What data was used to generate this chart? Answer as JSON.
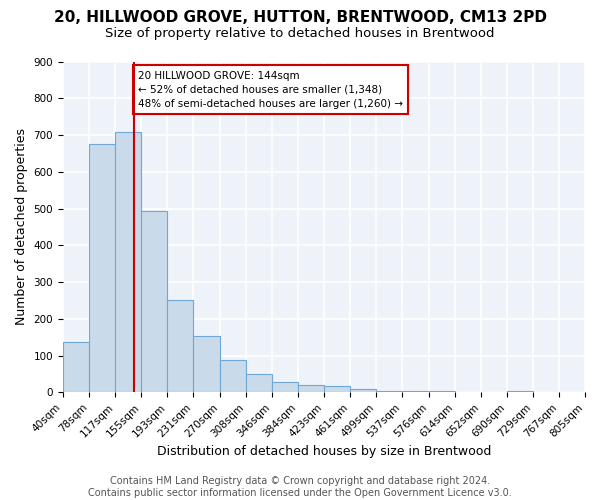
{
  "title": "20, HILLWOOD GROVE, HUTTON, BRENTWOOD, CM13 2PD",
  "subtitle": "Size of property relative to detached houses in Brentwood",
  "xlabel": "Distribution of detached houses by size in Brentwood",
  "ylabel": "Number of detached properties",
  "bin_edges": [
    40,
    78,
    117,
    155,
    193,
    231,
    270,
    308,
    346,
    384,
    423,
    461,
    499,
    537,
    576,
    614,
    652,
    690,
    729,
    767,
    805
  ],
  "bin_labels": [
    "40sqm",
    "78sqm",
    "117sqm",
    "155sqm",
    "193sqm",
    "231sqm",
    "270sqm",
    "308sqm",
    "346sqm",
    "384sqm",
    "423sqm",
    "461sqm",
    "499sqm",
    "537sqm",
    "576sqm",
    "614sqm",
    "652sqm",
    "690sqm",
    "729sqm",
    "767sqm",
    "805sqm"
  ],
  "counts": [
    138,
    675,
    707,
    493,
    252,
    152,
    87,
    50,
    28,
    20,
    18,
    10,
    5,
    4,
    3,
    2,
    1,
    5,
    1,
    1
  ],
  "bar_color": "#c9daea",
  "bar_edge_color": "#6fa8d5",
  "property_size": 144,
  "red_line_color": "#cc0000",
  "annotation_box_text": "20 HILLWOOD GROVE: 144sqm\n← 52% of detached houses are smaller (1,348)\n48% of semi-detached houses are larger (1,260) →",
  "annotation_box_edgecolor": "#cc0000",
  "ylim": [
    0,
    900
  ],
  "yticks": [
    0,
    100,
    200,
    300,
    400,
    500,
    600,
    700,
    800,
    900
  ],
  "footer_line1": "Contains HM Land Registry data © Crown copyright and database right 2024.",
  "footer_line2": "Contains public sector information licensed under the Open Government Licence v3.0.",
  "background_color": "#eef2f9",
  "grid_color": "#ffffff",
  "title_fontsize": 11,
  "subtitle_fontsize": 9.5,
  "axis_label_fontsize": 9,
  "tick_fontsize": 7.5,
  "footer_fontsize": 7
}
